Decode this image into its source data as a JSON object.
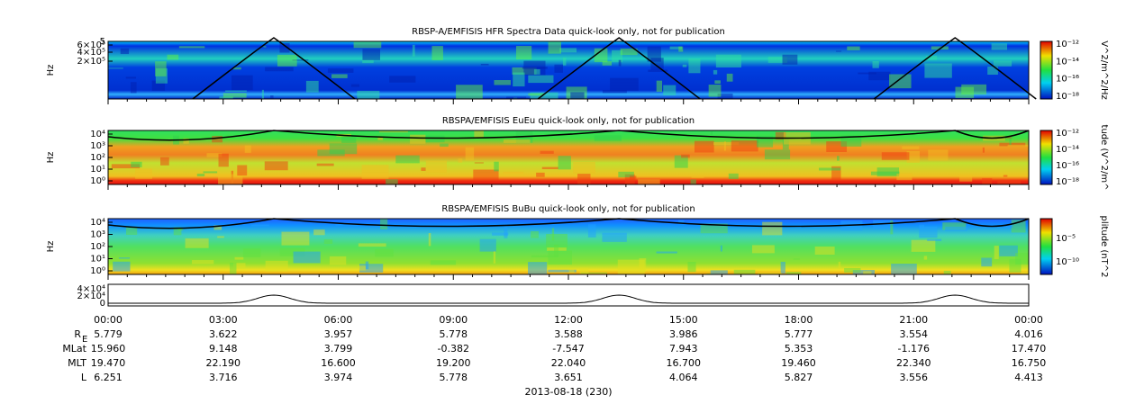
{
  "panels": [
    {
      "title": "RBSP-A/EMFISIS  HFR Spectra Data quick-look only, not for publication",
      "ylabel": "Hz",
      "yticks": [
        "5",
        "6×10⁵",
        "4×10⁵",
        "2×10⁵"
      ],
      "cbar_label": "V^2/m^2/Hz",
      "cbar_ticks": [
        "10⁻¹²",
        "10⁻¹⁴",
        "10⁻¹⁶",
        "10⁻¹⁸"
      ]
    },
    {
      "title": "RBSPA/EMFISIS  EuEu quick-look only, not for publication",
      "ylabel": "Hz",
      "yticks": [
        "10⁴",
        "10³",
        "10²",
        "10¹",
        "10⁰"
      ],
      "cbar_label": "tude (V^2/m^",
      "cbar_ticks": [
        "10⁻¹²",
        "10⁻¹⁴",
        "10⁻¹⁶",
        "10⁻¹⁸"
      ]
    },
    {
      "title": "RBSPA/EMFISIS  BuBu quick-look only, not for publication",
      "ylabel": "Hz",
      "yticks": [
        "10⁴",
        "10³",
        "10²",
        "10¹",
        "10⁰"
      ],
      "cbar_label": "plitude (nT^2",
      "cbar_ticks": [
        "10⁻⁵",
        "10⁻¹⁰"
      ]
    }
  ],
  "orbit_panel": {
    "yticks": [
      "4×10⁴",
      "2×10⁴",
      "0"
    ]
  },
  "x_ticks": [
    "00:00",
    "03:00",
    "06:00",
    "09:00",
    "12:00",
    "15:00",
    "18:00",
    "21:00",
    "00:00"
  ],
  "ephemeris": [
    {
      "label": "R",
      "label_sub": "E",
      "values": [
        "5.779",
        "3.622",
        "3.957",
        "5.778",
        "3.588",
        "3.986",
        "5.777",
        "3.554",
        "4.016"
      ]
    },
    {
      "label": "MLat",
      "values": [
        "15.960",
        "9.148",
        "3.799",
        "-0.382",
        "-7.547",
        "7.943",
        "5.353",
        "-1.176",
        "17.470"
      ]
    },
    {
      "label": "MLT",
      "values": [
        "19.470",
        "22.190",
        "16.600",
        "19.200",
        "22.040",
        "16.700",
        "19.460",
        "22.340",
        "16.750"
      ]
    },
    {
      "label": "L",
      "values": [
        "6.251",
        "3.716",
        "3.974",
        "5.778",
        "3.651",
        "4.064",
        "5.827",
        "3.556",
        "4.413"
      ]
    }
  ],
  "date": "2013-08-18 (230)"
}
